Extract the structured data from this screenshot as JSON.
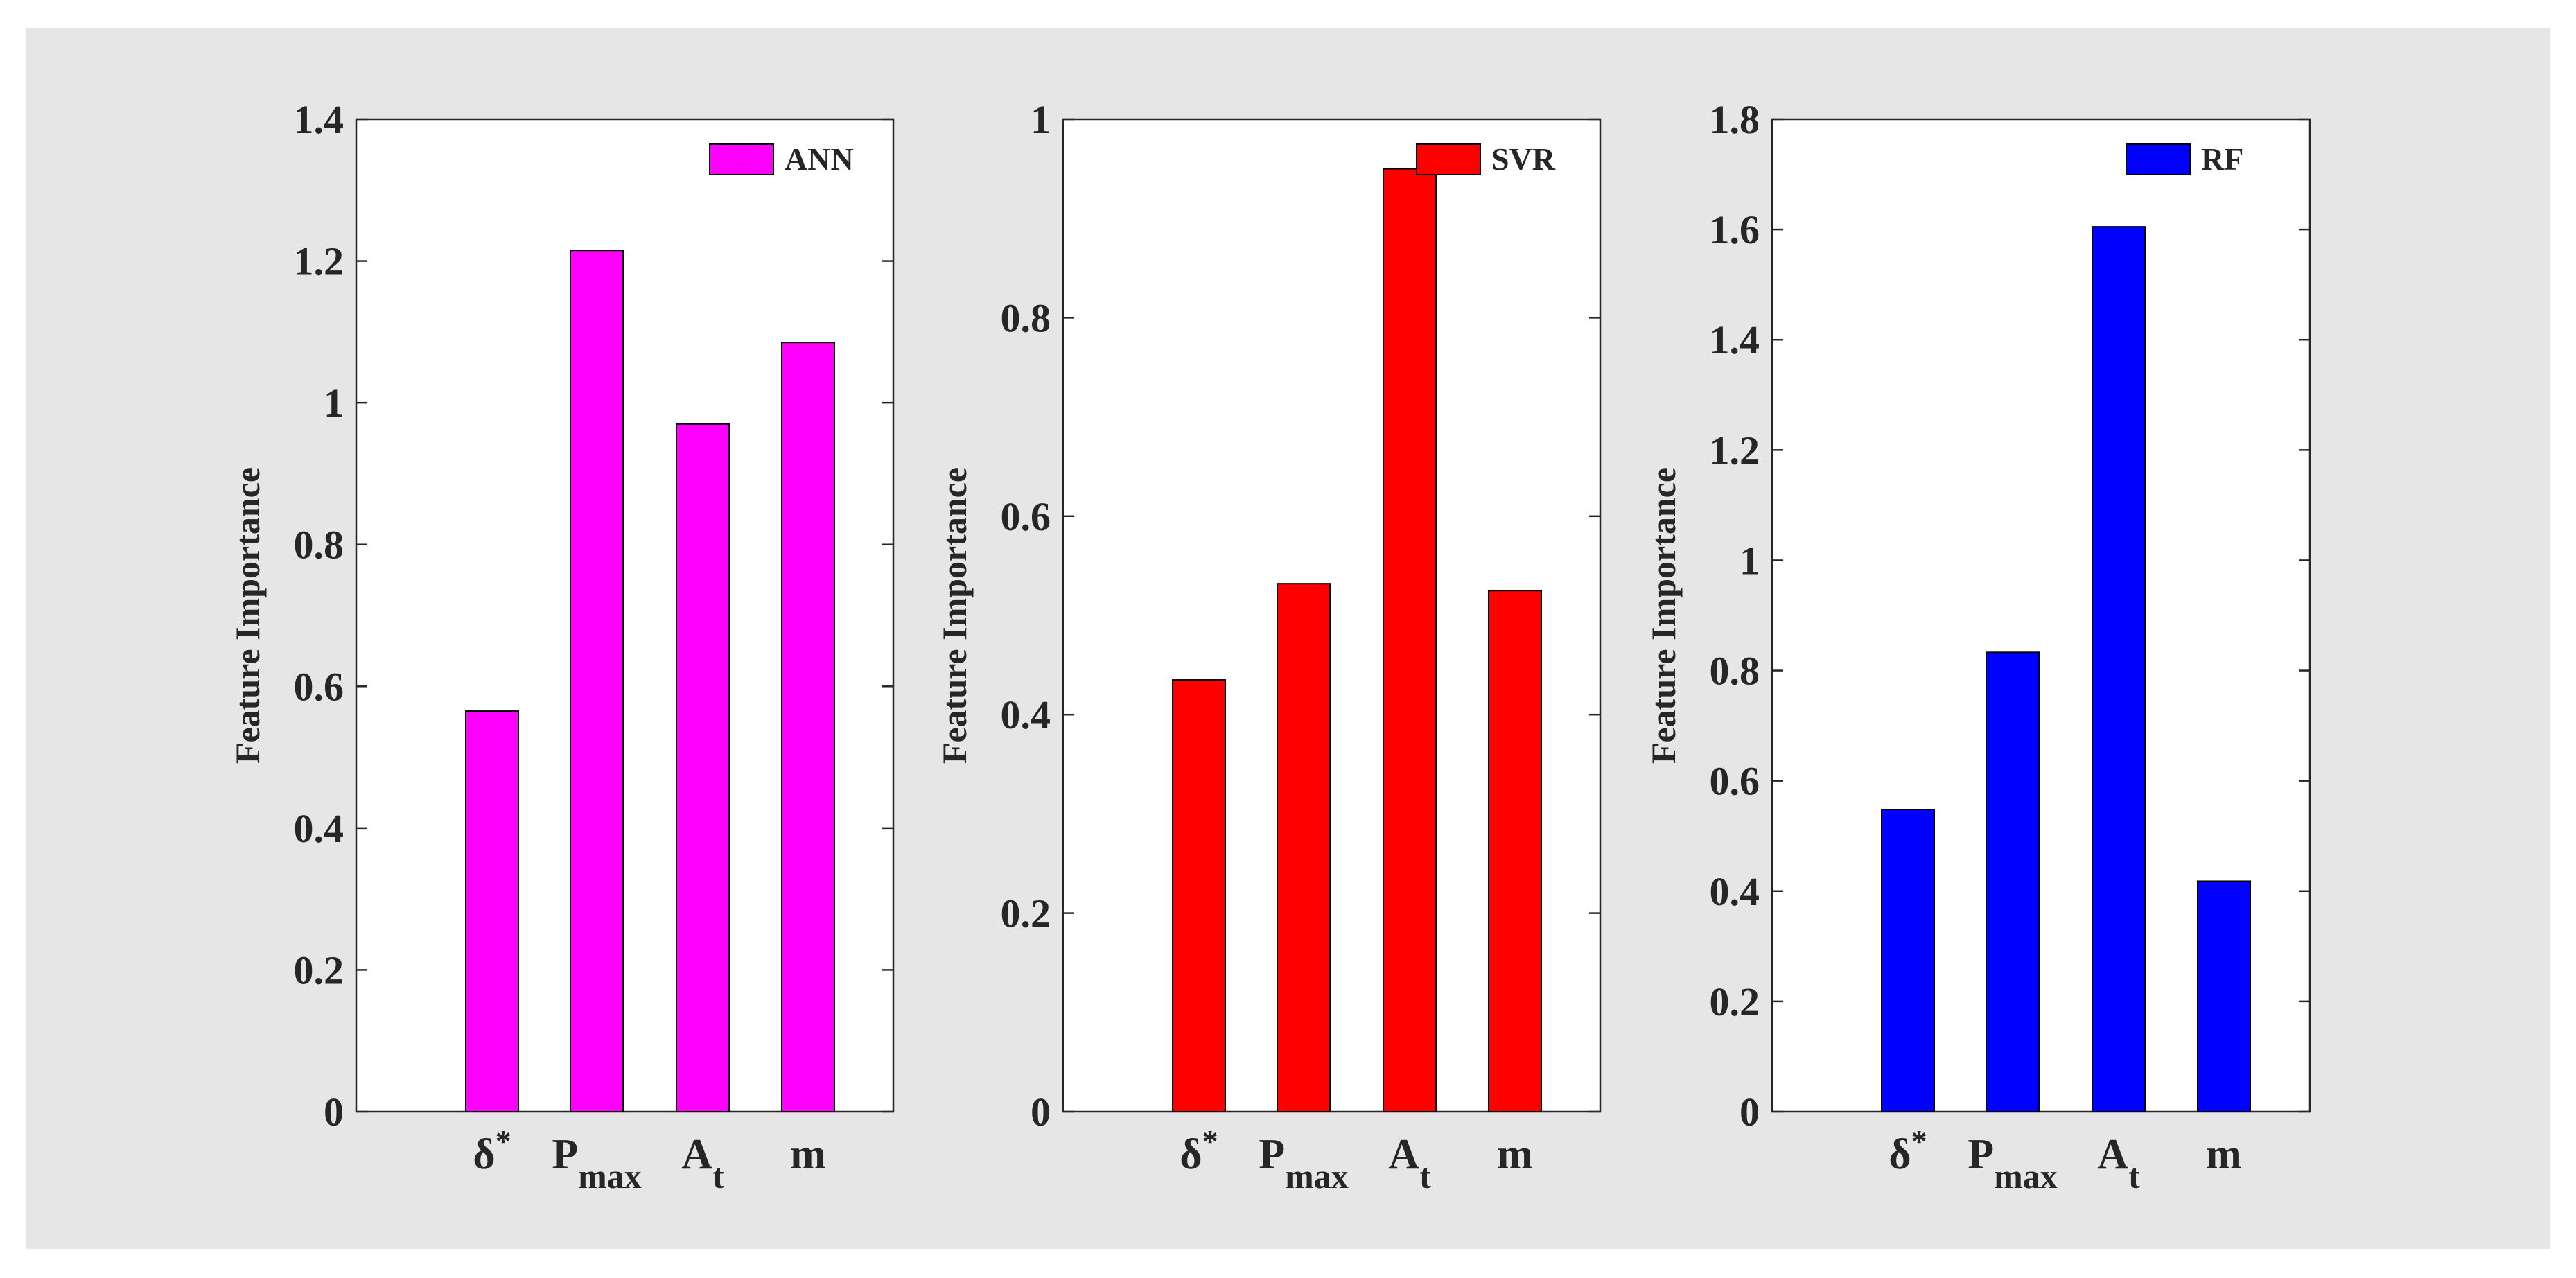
{
  "chart_data": [
    {
      "type": "bar",
      "categories": [
        "δ*",
        "Pmax",
        "At",
        "m"
      ],
      "category_labels": [
        {
          "base": "δ",
          "sup": "*",
          "sub": ""
        },
        {
          "base": "P",
          "sup": "",
          "sub": "max"
        },
        {
          "base": "A",
          "sup": "",
          "sub": "t"
        },
        {
          "base": "m",
          "sup": "",
          "sub": ""
        }
      ],
      "series": [
        {
          "name": "ANN",
          "values": [
            0.565,
            1.215,
            0.97,
            1.085
          ]
        }
      ],
      "ylabel": "Feature Importance",
      "xlabel": "",
      "ylim": [
        0,
        1.4
      ],
      "yticks": [
        0,
        0.2,
        0.4,
        0.6,
        0.8,
        1,
        1.2,
        1.4
      ],
      "ytick_labels": [
        "0",
        "0.2",
        "0.4",
        "0.6",
        "0.8",
        "1",
        "1.2",
        "1.4"
      ],
      "color": "#ff00ff",
      "legend": {
        "label": "ANN",
        "placement": "top-right"
      },
      "grid": false
    },
    {
      "type": "bar",
      "categories": [
        "δ*",
        "Pmax",
        "At",
        "m"
      ],
      "category_labels": [
        {
          "base": "δ",
          "sup": "*",
          "sub": ""
        },
        {
          "base": "P",
          "sup": "",
          "sub": "max"
        },
        {
          "base": "A",
          "sup": "",
          "sub": "t"
        },
        {
          "base": "m",
          "sup": "",
          "sub": ""
        }
      ],
      "series": [
        {
          "name": "SVR",
          "values": [
            0.435,
            0.532,
            0.95,
            0.525
          ]
        }
      ],
      "ylabel": "Feature Importance",
      "xlabel": "",
      "ylim": [
        0,
        1
      ],
      "yticks": [
        0,
        0.2,
        0.4,
        0.6,
        0.8,
        1
      ],
      "ytick_labels": [
        "0",
        "0.2",
        "0.4",
        "0.6",
        "0.8",
        "1"
      ],
      "color": "#ff0000",
      "legend": {
        "label": "SVR",
        "placement": "top-right"
      },
      "grid": false
    },
    {
      "type": "bar",
      "categories": [
        "δ*",
        "Pmax",
        "At",
        "m"
      ],
      "category_labels": [
        {
          "base": "δ",
          "sup": "*",
          "sub": ""
        },
        {
          "base": "P",
          "sup": "",
          "sub": "max"
        },
        {
          "base": "A",
          "sup": "",
          "sub": "t"
        },
        {
          "base": "m",
          "sup": "",
          "sub": ""
        }
      ],
      "series": [
        {
          "name": "RF",
          "values": [
            0.548,
            0.833,
            1.605,
            0.418
          ]
        }
      ],
      "ylabel": "Feature Importance",
      "xlabel": "",
      "ylim": [
        0,
        1.8
      ],
      "yticks": [
        0,
        0.2,
        0.4,
        0.6,
        0.8,
        1,
        1.2,
        1.4,
        1.6,
        1.8
      ],
      "ytick_labels": [
        "0",
        "0.2",
        "0.4",
        "0.6",
        "0.8",
        "1",
        "1.2",
        "1.4",
        "1.6",
        "1.8"
      ],
      "color": "#0000ff",
      "legend": {
        "label": "RF",
        "placement": "top-right"
      },
      "grid": false
    }
  ]
}
